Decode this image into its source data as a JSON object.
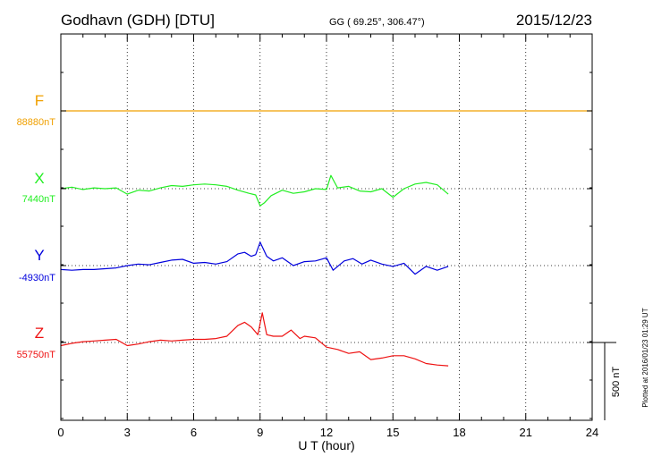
{
  "header": {
    "station": "Godhavn (GDH)  [DTU]",
    "coords": "GG ( 69.25°, 306.47°)",
    "date": "2015/12/23"
  },
  "footer": {
    "plotted": "Plotted at 2016/01/23 01:29 UT"
  },
  "colors": {
    "F": "#f0a000",
    "X": "#22ee22",
    "Y": "#0000dd",
    "Z": "#ee1111",
    "axis": "#000000"
  },
  "chart_data": {
    "type": "line",
    "title": "Godhavn (GDH)  [DTU]",
    "xlabel": "U T (hour)",
    "xlim": [
      0,
      24
    ],
    "x_ticks": [
      0,
      3,
      6,
      9,
      12,
      15,
      18,
      21,
      24
    ],
    "x_tick_labels": [
      "0",
      "3",
      "6",
      "9",
      "12",
      "15",
      "18",
      "21",
      "24"
    ],
    "grid": true,
    "scale_bar": {
      "label": "500 nT",
      "nT": 500
    },
    "series": [
      {
        "name": "F",
        "baseline_label": "88880nT",
        "baseline": 88880,
        "x": [
          0,
          24
        ],
        "values": [
          88880,
          88880
        ]
      },
      {
        "name": "X",
        "baseline_label": "7440nT",
        "baseline": 7440,
        "x": [
          0,
          0.5,
          1,
          1.5,
          2,
          2.5,
          3,
          3.5,
          4,
          4.5,
          5,
          5.5,
          6,
          6.5,
          7,
          7.5,
          8,
          8.5,
          8.8,
          9,
          9.2,
          9.5,
          10,
          10.5,
          11,
          11.5,
          12,
          12.2,
          12.5,
          13,
          13.5,
          14,
          14.5,
          15,
          15.5,
          16,
          16.5,
          17,
          17.5
        ],
        "values": [
          7440,
          7450,
          7435,
          7445,
          7440,
          7445,
          7405,
          7430,
          7425,
          7445,
          7460,
          7455,
          7465,
          7470,
          7465,
          7455,
          7430,
          7410,
          7400,
          7330,
          7350,
          7395,
          7430,
          7410,
          7420,
          7440,
          7435,
          7525,
          7445,
          7455,
          7425,
          7420,
          7440,
          7385,
          7440,
          7470,
          7480,
          7465,
          7405
        ]
      },
      {
        "name": "Y",
        "baseline_label": "-4930nT",
        "baseline": -4930,
        "x": [
          0,
          0.5,
          1,
          1.5,
          2,
          2.5,
          3,
          3.5,
          4,
          4.5,
          5,
          5.5,
          6,
          6.5,
          7,
          7.5,
          8,
          8.3,
          8.6,
          8.8,
          9,
          9.3,
          9.6,
          10,
          10.5,
          11,
          11.5,
          12,
          12.3,
          12.8,
          13.2,
          13.6,
          14,
          14.5,
          15,
          15.5,
          16,
          16.5,
          17,
          17.5
        ],
        "values": [
          -4955,
          -4960,
          -4955,
          -4955,
          -4950,
          -4945,
          -4930,
          -4920,
          -4925,
          -4910,
          -4895,
          -4890,
          -4915,
          -4910,
          -4920,
          -4905,
          -4855,
          -4845,
          -4870,
          -4860,
          -4780,
          -4870,
          -4900,
          -4880,
          -4930,
          -4905,
          -4900,
          -4880,
          -4960,
          -4900,
          -4885,
          -4920,
          -4895,
          -4920,
          -4935,
          -4915,
          -4985,
          -4935,
          -4960,
          -4935
        ]
      },
      {
        "name": "Z",
        "baseline_label": "55750nT",
        "baseline": 55750,
        "x": [
          0,
          0.5,
          1,
          1.5,
          2,
          2.5,
          3,
          3.5,
          4,
          4.5,
          5,
          5.5,
          6,
          6.5,
          7,
          7.5,
          8,
          8.3,
          8.6,
          8.9,
          9.1,
          9.3,
          9.6,
          10,
          10.4,
          10.8,
          11,
          11.5,
          12,
          12.5,
          13,
          13.5,
          14,
          14.5,
          15,
          15.5,
          16,
          16.5,
          17,
          17.5
        ],
        "values": [
          55730,
          55745,
          55755,
          55760,
          55765,
          55770,
          55730,
          55740,
          55755,
          55765,
          55760,
          55765,
          55770,
          55770,
          55775,
          55790,
          55860,
          55880,
          55850,
          55800,
          55940,
          55800,
          55790,
          55790,
          55830,
          55775,
          55790,
          55780,
          55720,
          55705,
          55680,
          55690,
          55640,
          55650,
          55665,
          55665,
          55645,
          55615,
          55605,
          55600
        ]
      }
    ]
  }
}
